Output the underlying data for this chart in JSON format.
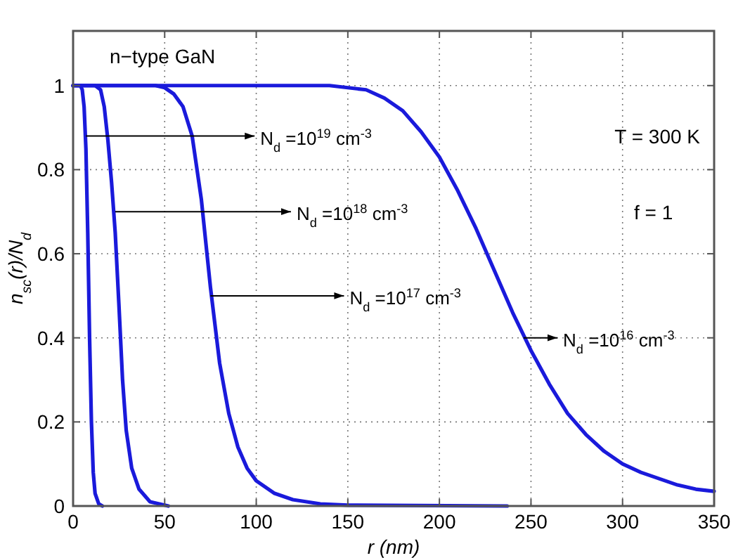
{
  "chart_data": {
    "type": "line",
    "xlabel": "r (nm)",
    "ylabel": "n$_{sc}$(r)/N$_{d}$",
    "xlim": [
      0,
      350
    ],
    "xticks": [
      0,
      50,
      100,
      150,
      200,
      250,
      300,
      350
    ],
    "ylim": [
      0,
      1.13
    ],
    "yticks": [
      0,
      0.2,
      0.4,
      0.6,
      0.8,
      1
    ],
    "grid": true,
    "line_style": "solid",
    "series": [
      {
        "color": "#1a1adb",
        "x": [
          0,
          4,
          5,
          6,
          7,
          8,
          9,
          10,
          11,
          12,
          14,
          16
        ],
        "values": [
          1,
          1,
          0.99,
          0.95,
          0.85,
          0.65,
          0.4,
          0.2,
          0.08,
          0.03,
          0.005,
          0
        ]
      },
      {
        "color": "#1a1adb",
        "x": [
          0,
          12,
          15,
          17,
          19,
          21,
          23,
          25,
          27,
          29,
          32,
          36,
          42,
          52
        ],
        "values": [
          1,
          1,
          0.99,
          0.95,
          0.87,
          0.77,
          0.65,
          0.48,
          0.3,
          0.18,
          0.09,
          0.04,
          0.01,
          0
        ]
      },
      {
        "color": "#1a1adb",
        "x": [
          0,
          45,
          50,
          55,
          60,
          65,
          70,
          75,
          80,
          85,
          90,
          95,
          100,
          110,
          120,
          135,
          150,
          237
        ],
        "values": [
          1,
          1,
          0.995,
          0.98,
          0.95,
          0.88,
          0.73,
          0.52,
          0.34,
          0.22,
          0.14,
          0.09,
          0.06,
          0.03,
          0.015,
          0.005,
          0.002,
          0
        ]
      },
      {
        "color": "#1a1adb",
        "x": [
          0,
          140,
          150,
          160,
          170,
          180,
          190,
          200,
          210,
          220,
          230,
          240,
          250,
          260,
          270,
          280,
          290,
          300,
          310,
          320,
          330,
          340,
          350
        ],
        "values": [
          1,
          1,
          0.995,
          0.99,
          0.97,
          0.94,
          0.89,
          0.83,
          0.75,
          0.66,
          0.56,
          0.46,
          0.37,
          0.29,
          0.22,
          0.17,
          0.13,
          0.1,
          0.08,
          0.065,
          0.05,
          0.04,
          0.035
        ]
      }
    ],
    "annotations": [
      "n−type GaN",
      "T = 300 K",
      "f = 1",
      {
        "text": "N$_{d}$ =10$^{19}$ cm$^{-3}$",
        "x": 7,
        "y": 0.88
      },
      {
        "text": "N$_{d}$ =10$^{18}$ cm$^{-3}$",
        "x": 23,
        "y": 0.7
      },
      {
        "text": "N$_{d}$ =10$^{17}$ cm$^{-3}$",
        "x": 75,
        "y": 0.5
      },
      {
        "text": "N$_{d}$ =10$^{16}$ cm$^{-3}$",
        "x": 246,
        "y": 0.4
      }
    ]
  }
}
